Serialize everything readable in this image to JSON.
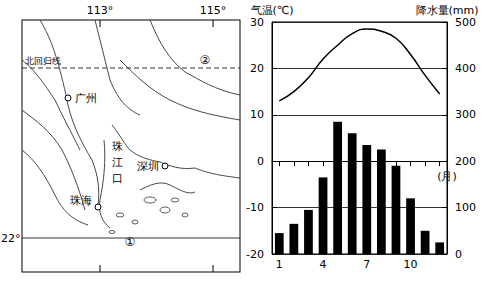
{
  "map": {
    "meridians": [
      "113°",
      "115°"
    ],
    "parallel": "22°",
    "tropic": "北回归线",
    "cities": [
      "广州",
      "深圳",
      "珠海"
    ],
    "estuary": "珠江口",
    "points": [
      "①",
      "②"
    ]
  },
  "chart_data": {
    "type": "combo",
    "categories": [
      "1",
      null,
      null,
      "4",
      null,
      null,
      "7",
      null,
      null,
      "10",
      null,
      null
    ],
    "xlabel": "(月)",
    "ylabel": "气温(℃)",
    "y2label": "降水量(mm)",
    "ylim": [
      -20,
      30
    ],
    "yticks": [
      -20,
      -10,
      0,
      10,
      20,
      30
    ],
    "y2lim": [
      0,
      500
    ],
    "y2ticks": [
      0,
      100,
      200,
      300,
      400,
      500
    ],
    "grid": true,
    "series": [
      {
        "type": "line",
        "color": "#000000",
        "values": [
          13,
          15,
          18,
          22,
          25,
          27.5,
          28.5,
          28,
          26.5,
          23,
          18.5,
          14.5
        ]
      },
      {
        "type": "bar",
        "axis": "y2",
        "color": "#000000",
        "values": [
          45,
          65,
          95,
          165,
          285,
          260,
          235,
          225,
          190,
          120,
          50,
          25
        ]
      }
    ]
  }
}
